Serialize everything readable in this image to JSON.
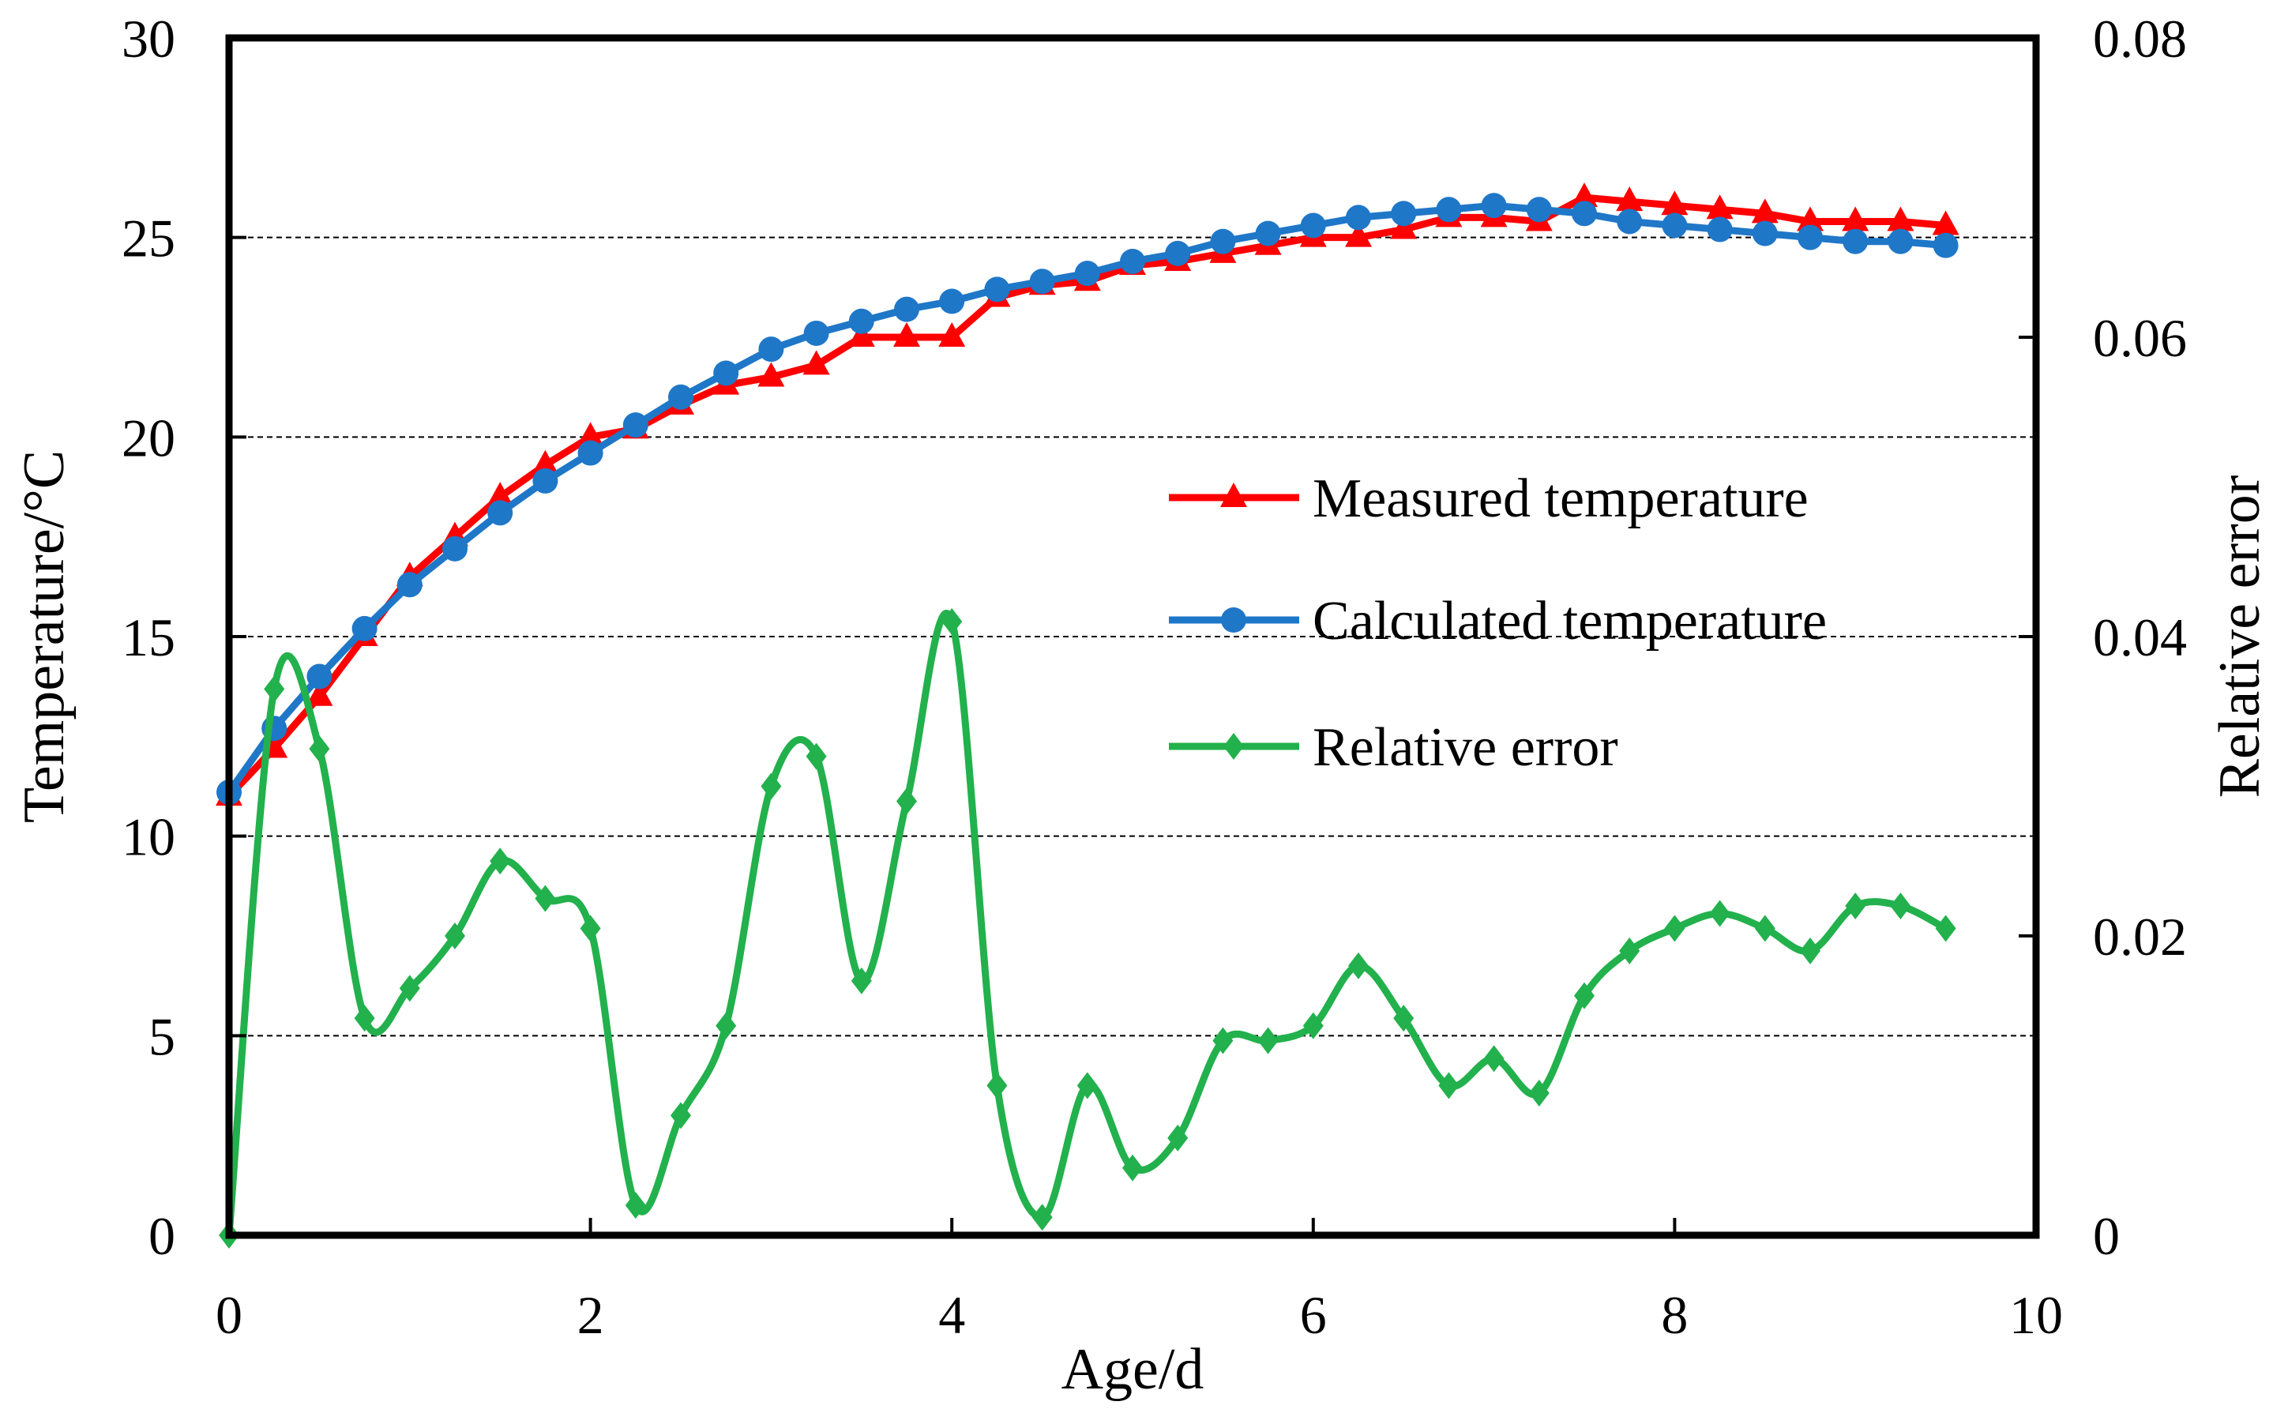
{
  "chart_data": {
    "type": "line",
    "title": "",
    "xlabel": "Age/d",
    "ylabel": "Temperature/°C",
    "y2label": "Relative error",
    "xlim": [
      0,
      10
    ],
    "ylim": [
      0,
      30
    ],
    "y2lim": [
      0,
      0.08
    ],
    "x_ticks": [
      "0",
      "2",
      "4",
      "6",
      "8",
      "10"
    ],
    "y_ticks": [
      "0",
      "5",
      "10",
      "15",
      "20",
      "25",
      "30"
    ],
    "y2_ticks": [
      "0",
      "0.02",
      "0.04",
      "0.06",
      "0.08"
    ],
    "grid": "horizontal dashed",
    "legend_position": "center-right",
    "x": [
      0,
      0.25,
      0.5,
      0.75,
      1,
      1.25,
      1.5,
      1.75,
      2,
      2.25,
      2.5,
      2.75,
      3,
      3.25,
      3.5,
      3.75,
      4,
      4.25,
      4.5,
      4.75,
      5,
      5.25,
      5.5,
      5.75,
      6,
      6.25,
      6.5,
      6.75,
      7,
      7.25,
      7.5,
      7.75,
      8,
      8.25,
      8.5,
      8.75,
      9,
      9.25,
      9.5
    ],
    "series": [
      {
        "name": "Measured temperature",
        "axis": "left",
        "color": "#ff0000",
        "marker": "triangle",
        "smooth": false,
        "values": [
          11.0,
          12.2,
          13.5,
          15.0,
          16.5,
          17.5,
          18.5,
          19.3,
          20.0,
          20.2,
          20.8,
          21.3,
          21.5,
          21.8,
          22.5,
          22.5,
          22.5,
          23.5,
          23.8,
          23.9,
          24.3,
          24.4,
          24.6,
          24.8,
          25.0,
          25.0,
          25.2,
          25.5,
          25.5,
          25.4,
          26.0,
          25.9,
          25.8,
          25.7,
          25.6,
          25.4,
          25.4,
          25.4,
          25.3
        ]
      },
      {
        "name": "Calculated temperature",
        "axis": "left",
        "color": "#1f77c8",
        "marker": "circle",
        "smooth": false,
        "values": [
          11.1,
          12.7,
          14.0,
          15.2,
          16.3,
          17.2,
          18.1,
          18.9,
          19.6,
          20.3,
          21.0,
          21.6,
          22.2,
          22.6,
          22.9,
          23.2,
          23.4,
          23.7,
          23.9,
          24.1,
          24.4,
          24.6,
          24.9,
          25.1,
          25.3,
          25.5,
          25.6,
          25.7,
          25.8,
          25.7,
          25.6,
          25.4,
          25.3,
          25.2,
          25.1,
          25.0,
          24.9,
          24.9,
          24.8
        ]
      },
      {
        "name": "Relative error",
        "axis": "right",
        "color": "#22b14c",
        "marker": "diamond",
        "smooth": true,
        "values": [
          0.0,
          0.0365,
          0.0325,
          0.0145,
          0.0165,
          0.02,
          0.025,
          0.0225,
          0.0205,
          0.002,
          0.008,
          0.014,
          0.03,
          0.032,
          0.017,
          0.029,
          0.041,
          0.01,
          0.0012,
          0.01,
          0.0045,
          0.0065,
          0.013,
          0.013,
          0.014,
          0.018,
          0.0145,
          0.01,
          0.0118,
          0.0095,
          0.016,
          0.019,
          0.0205,
          0.0215,
          0.0205,
          0.019,
          0.022,
          0.022,
          0.0205
        ]
      }
    ]
  }
}
